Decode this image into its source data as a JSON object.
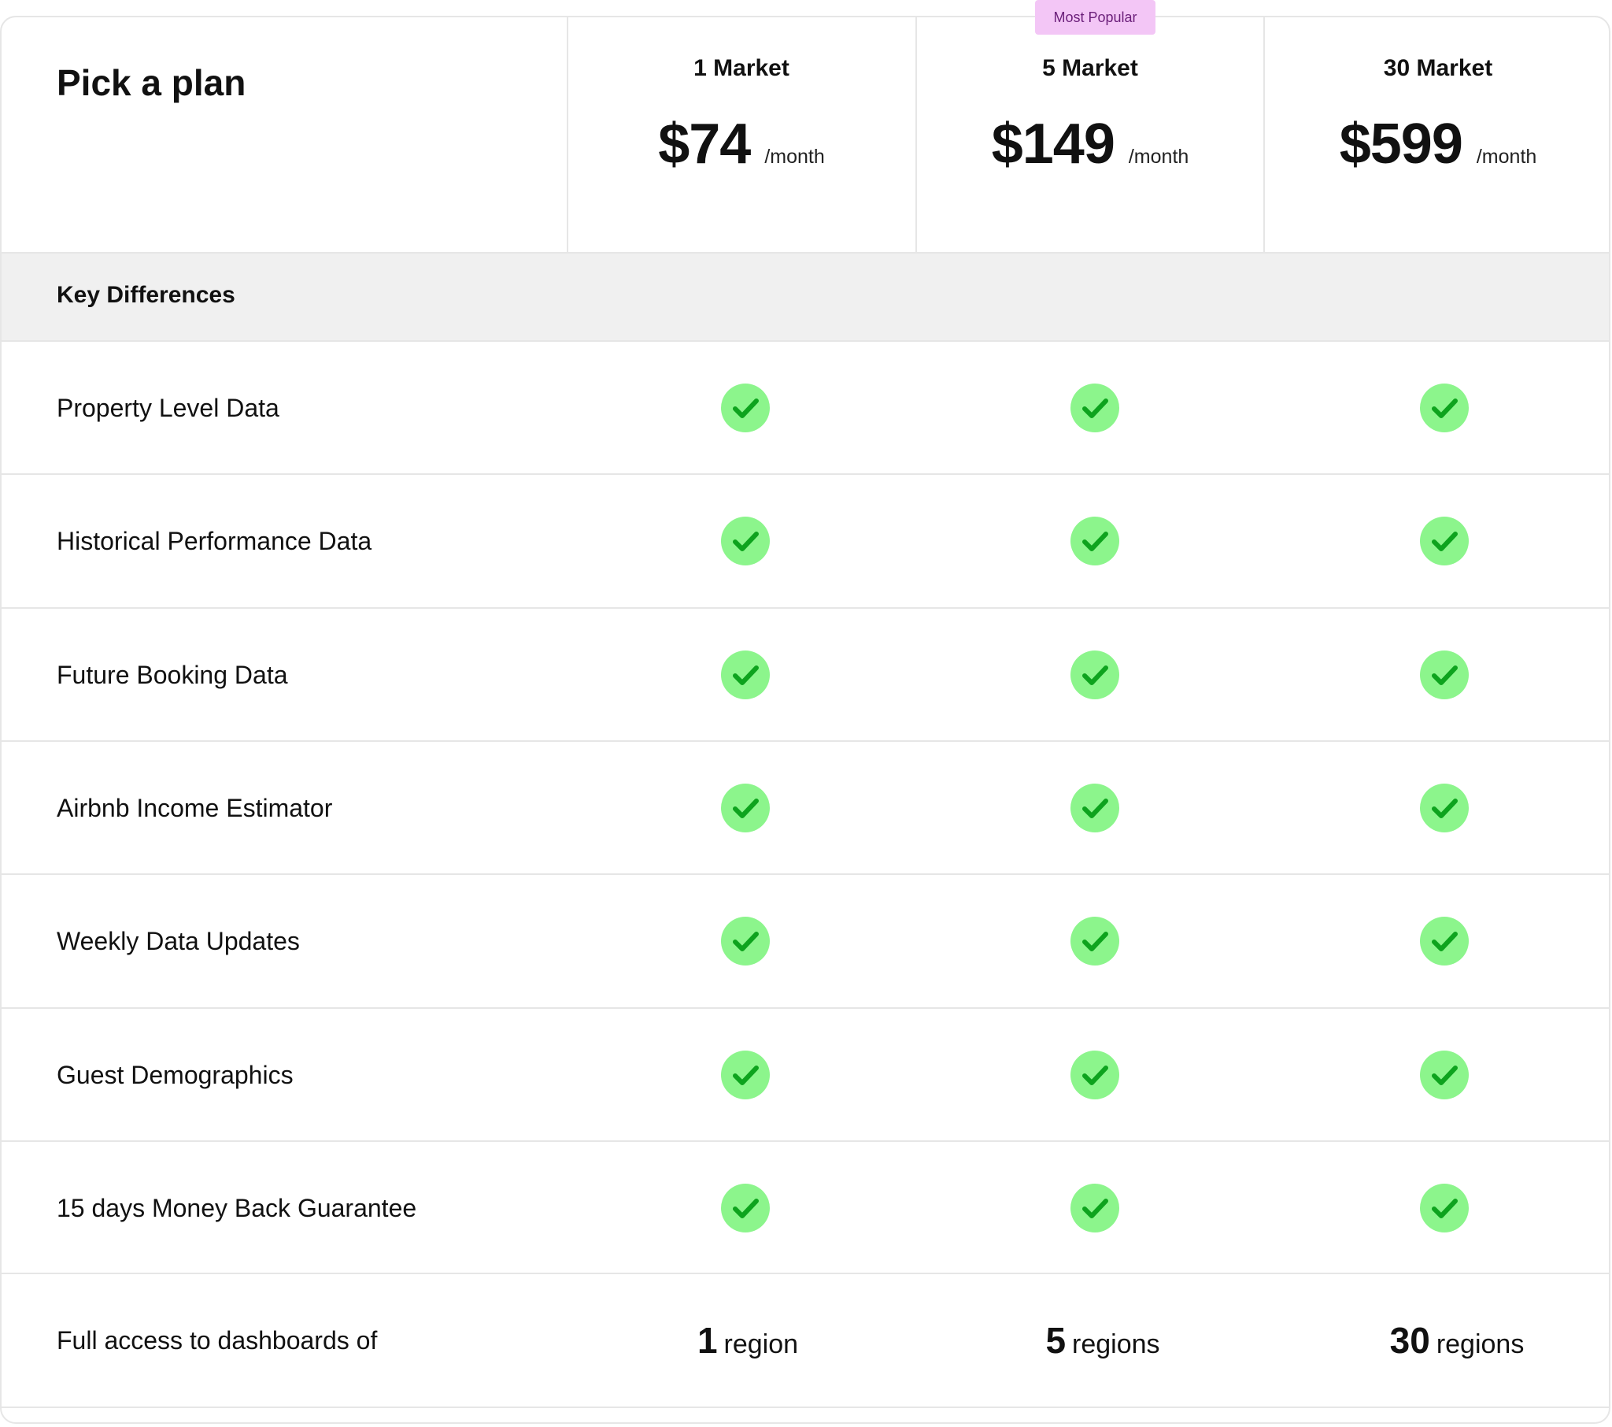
{
  "header": {
    "title": "Pick a plan",
    "badge": "Most Popular"
  },
  "plans": [
    {
      "name": "1 Market",
      "price": "$74",
      "period": "/month"
    },
    {
      "name": "5 Market",
      "price": "$149",
      "period": "/month"
    },
    {
      "name": "30 Market",
      "price": "$599",
      "period": "/month"
    }
  ],
  "section": {
    "label": "Key Differences"
  },
  "features": [
    {
      "label": "Property Level Data"
    },
    {
      "label": "Historical Performance Data"
    },
    {
      "label": "Future Booking Data"
    },
    {
      "label": "Airbnb Income Estimator"
    },
    {
      "label": "Weekly Data Updates"
    },
    {
      "label": "Guest Demographics"
    },
    {
      "label": "15 days Money Back Guarantee"
    }
  ],
  "regions": {
    "label": "Full access to dashboards of",
    "values": [
      {
        "num": "1",
        "word": "region"
      },
      {
        "num": "5",
        "word": "regions"
      },
      {
        "num": "30",
        "word": "regions"
      }
    ]
  },
  "icons": {
    "check": "check-circle-icon"
  },
  "colors": {
    "check_bg": "#8cf58c",
    "check_mark": "#0ea31e",
    "badge_bg": "#f3c6f6",
    "section_bg": "#f0f0f0"
  }
}
